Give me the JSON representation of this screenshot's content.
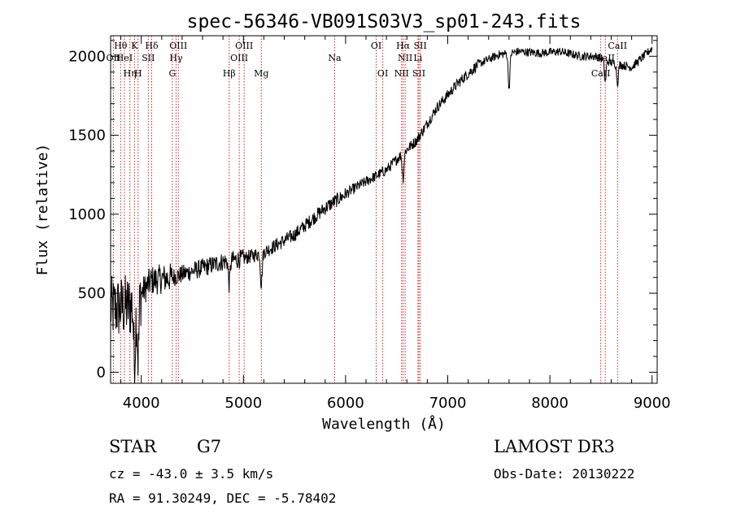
{
  "chart_data": {
    "type": "line",
    "title": "spec-56346-VB091S03V3_sp01-243.fits",
    "xlabel": "Wavelength (Å)",
    "ylabel": "Flux (relative)",
    "xlim": [
      3700,
      9050
    ],
    "ylim": [
      -70,
      2130
    ],
    "xticks": [
      4000,
      5000,
      6000,
      7000,
      8000,
      9000
    ],
    "yticks": [
      0,
      500,
      1000,
      1500,
      2000
    ],
    "continuum_anchor_x": [
      3700,
      3900,
      4100,
      4300,
      4500,
      4800,
      5000,
      5200,
      5500,
      5800,
      6100,
      6400,
      6550,
      6700,
      6900,
      7100,
      7300,
      7500,
      7700,
      7900,
      8100,
      8300,
      8450,
      8600,
      8800,
      9000
    ],
    "continuum_anchor_y": [
      400,
      420,
      580,
      600,
      640,
      700,
      720,
      760,
      870,
      1040,
      1170,
      1280,
      1380,
      1470,
      1680,
      1830,
      1950,
      2010,
      2030,
      2020,
      2030,
      2000,
      2000,
      1960,
      1930,
      2050
    ],
    "spectral_lines": [
      {
        "label": "Hθ",
        "wavelength": 3798,
        "row": 1
      },
      {
        "label": "OII",
        "wavelength": 3727,
        "row": 2
      },
      {
        "label": "HeI",
        "wavelength": 3835,
        "row": 2
      },
      {
        "label": "Hη",
        "wavelength": 3889,
        "row": 3
      },
      {
        "label": "K",
        "wavelength": 3934,
        "row": 1
      },
      {
        "label": "H",
        "wavelength": 3969,
        "row": 3
      },
      {
        "label": "SII",
        "wavelength": 4069,
        "row": 2
      },
      {
        "label": "Hδ",
        "wavelength": 4102,
        "row": 1
      },
      {
        "label": "G",
        "wavelength": 4304,
        "row": 3
      },
      {
        "label": "Hγ",
        "wavelength": 4341,
        "row": 2
      },
      {
        "label": "OIII",
        "wavelength": 4363,
        "row": 1
      },
      {
        "label": "Hβ",
        "wavelength": 4861,
        "row": 3
      },
      {
        "label": "OIII",
        "wavelength": 4959,
        "row": 2
      },
      {
        "label": "OIII",
        "wavelength": 5007,
        "row": 1
      },
      {
        "label": "Mg",
        "wavelength": 5175,
        "row": 3
      },
      {
        "label": "Na",
        "wavelength": 5893,
        "row": 2
      },
      {
        "label": "OI",
        "wavelength": 6300,
        "row": 1
      },
      {
        "label": "OI",
        "wavelength": 6364,
        "row": 3
      },
      {
        "label": "NII",
        "wavelength": 6548,
        "row": 3
      },
      {
        "label": "NII",
        "wavelength": 6583,
        "row": 2
      },
      {
        "label": "Hα",
        "wavelength": 6563,
        "row": 1
      },
      {
        "label": "SII",
        "wavelength": 6717,
        "row": 3
      },
      {
        "label": "SII",
        "wavelength": 6731,
        "row": 1
      },
      {
        "label": "Li",
        "wavelength": 6708,
        "row": 2
      },
      {
        "label": "CaII",
        "wavelength": 8498,
        "row": 3
      },
      {
        "label": "CaII",
        "wavelength": 8542,
        "row": 2
      },
      {
        "label": "CaII",
        "wavelength": 8662,
        "row": 1
      }
    ]
  },
  "info": {
    "object_type": "STAR",
    "subclass": "G7",
    "survey": "LAMOST DR3",
    "cz": "cz = -43.0 ± 3.5 km/s",
    "obs_date": "Obs-Date: 20130222",
    "coords": "RA =  91.30249, DEC =  -5.78402"
  },
  "colors": {
    "line_marker": "#cc2222",
    "spectrum": "#000000"
  }
}
